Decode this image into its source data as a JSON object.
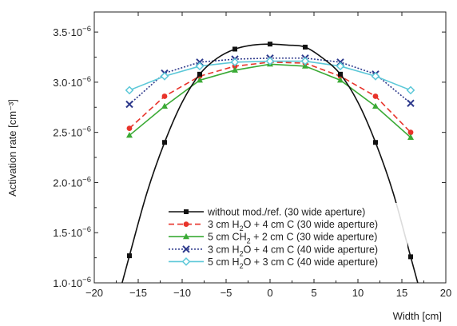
{
  "chart_data": {
    "type": "line",
    "title": "",
    "xlabel": "Width [cm]",
    "ylabel": "Activation rate [cm⁻³]",
    "xlim": [
      -20,
      20
    ],
    "ylim": [
      1e-06,
      3.7e-06
    ],
    "xticks": [
      -20,
      -15,
      -10,
      -5,
      0,
      5,
      10,
      15,
      20
    ],
    "yticks": [
      1e-06,
      1.5e-06,
      2e-06,
      2.5e-06,
      3e-06,
      3.5e-06
    ],
    "ytick_labels": [
      {
        "mantissa": "1.0",
        "exp": "−6"
      },
      {
        "mantissa": "1.5",
        "exp": "−6"
      },
      {
        "mantissa": "2.0",
        "exp": "−6"
      },
      {
        "mantissa": "2.5",
        "exp": "−6"
      },
      {
        "mantissa": "3.0",
        "exp": "−6"
      },
      {
        "mantissa": "3.5",
        "exp": "−6"
      }
    ],
    "grid": false,
    "legend_position": "bottom-right",
    "series": [
      {
        "name": "without mod./ref. (30 wide aperture)",
        "color": "#111111",
        "dash": "solid",
        "marker": "square",
        "points": [
          [
            -16,
            1.27e-06
          ],
          [
            -12,
            2.4e-06
          ],
          [
            -8,
            3.08e-06
          ],
          [
            -4,
            3.33e-06
          ],
          [
            0,
            3.38e-06
          ],
          [
            4,
            3.35e-06
          ],
          [
            8,
            3.08e-06
          ],
          [
            12,
            2.4e-06
          ],
          [
            16,
            1.26e-06
          ]
        ],
        "curve": [
          [
            -18.2,
            5.5e-07
          ],
          [
            -16,
            1.27e-06
          ],
          [
            -14,
            1.9e-06
          ],
          [
            -12,
            2.4e-06
          ],
          [
            -10,
            2.8e-06
          ],
          [
            -8,
            3.08e-06
          ],
          [
            -6,
            3.24e-06
          ],
          [
            -4,
            3.33e-06
          ],
          [
            -2,
            3.37e-06
          ],
          [
            0,
            3.38e-06
          ],
          [
            2,
            3.37e-06
          ],
          [
            4,
            3.35e-06
          ],
          [
            6,
            3.24e-06
          ],
          [
            8,
            3.08e-06
          ],
          [
            10,
            2.8e-06
          ],
          [
            12,
            2.4e-06
          ],
          [
            14,
            1.9e-06
          ],
          [
            16,
            1.26e-06
          ],
          [
            18.2,
            5.5e-07
          ]
        ]
      },
      {
        "name_parts": [
          "3 cm H",
          "2",
          "O + 4 cm C (30 wide aperture)"
        ],
        "color": "#e8332a",
        "dash": "dashed",
        "marker": "circle",
        "points": [
          [
            -16,
            2.54e-06
          ],
          [
            -12,
            2.86e-06
          ],
          [
            -8,
            3.06e-06
          ],
          [
            -4,
            3.16e-06
          ],
          [
            0,
            3.2e-06
          ],
          [
            4,
            3.19e-06
          ],
          [
            8,
            3.06e-06
          ],
          [
            12,
            2.86e-06
          ],
          [
            16,
            2.5e-06
          ]
        ]
      },
      {
        "name_parts": [
          "5 cm CH",
          "2",
          " + 2 cm C (30 wide aperture)"
        ],
        "color": "#3aaa35",
        "dash": "solid",
        "marker": "triangle",
        "points": [
          [
            -16,
            2.47e-06
          ],
          [
            -12,
            2.76e-06
          ],
          [
            -8,
            3.02e-06
          ],
          [
            -4,
            3.12e-06
          ],
          [
            0,
            3.18e-06
          ],
          [
            4,
            3.16e-06
          ],
          [
            8,
            3.02e-06
          ],
          [
            12,
            2.76e-06
          ],
          [
            16,
            2.45e-06
          ]
        ]
      },
      {
        "name_parts": [
          "3 cm H",
          "2",
          "O + 4 cm C (40 wide aperture)"
        ],
        "color": "#2e3a8c",
        "dash": "dotted",
        "marker": "x",
        "points": [
          [
            -16,
            2.78e-06
          ],
          [
            -12,
            3.09e-06
          ],
          [
            -8,
            3.2e-06
          ],
          [
            -4,
            3.23e-06
          ],
          [
            0,
            3.24e-06
          ],
          [
            4,
            3.24e-06
          ],
          [
            8,
            3.2e-06
          ],
          [
            12,
            3.08e-06
          ],
          [
            16,
            2.79e-06
          ]
        ]
      },
      {
        "name_parts": [
          "5 cm H",
          "2",
          "O + 3 cm C (40 wide aperture)"
        ],
        "color": "#5cc8d8",
        "dash": "solid",
        "marker": "diamond",
        "points": [
          [
            -16,
            2.92e-06
          ],
          [
            -12,
            3.06e-06
          ],
          [
            -8,
            3.16e-06
          ],
          [
            -4,
            3.2e-06
          ],
          [
            0,
            3.21e-06
          ],
          [
            4,
            3.21e-06
          ],
          [
            8,
            3.16e-06
          ],
          [
            12,
            3.06e-06
          ],
          [
            16,
            2.92e-06
          ]
        ]
      }
    ]
  }
}
